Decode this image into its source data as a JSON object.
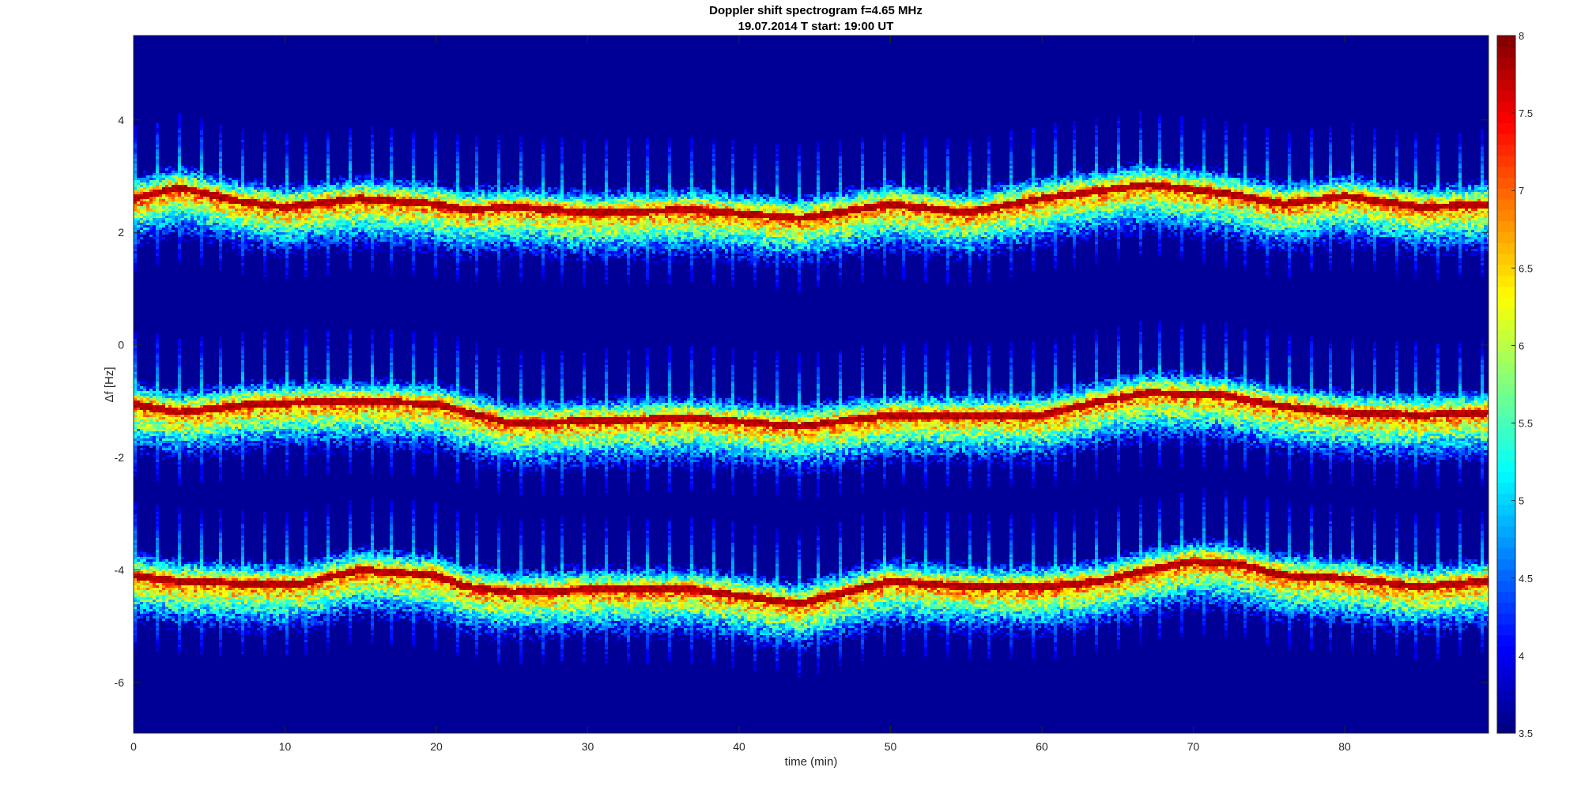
{
  "chart_data": {
    "type": "heatmap",
    "title": "Doppler shift spectrogram f=4.65 MHz",
    "subtitle": "19.07.2014   T start: 19:00 UT",
    "xlabel": "time (min)",
    "ylabel": "Δf [Hz]",
    "xlim": [
      0,
      89.5
    ],
    "ylim": [
      -6.9,
      5.5
    ],
    "x_ticks": [
      "0",
      "10",
      "20",
      "30",
      "40",
      "50",
      "60",
      "70",
      "80"
    ],
    "y_ticks": [
      "-6",
      "-4",
      "-2",
      "0",
      "2",
      "4"
    ],
    "colormap": "jet",
    "colorbar": {
      "range": [
        3.5,
        8
      ],
      "ticks": [
        "3.5",
        "4",
        "4.5",
        "5",
        "5.5",
        "6",
        "6.5",
        "7",
        "7.5",
        "8"
      ]
    },
    "background_level": 3.6,
    "grid": false,
    "bands": [
      {
        "time": [
          0,
          3,
          7,
          10,
          15,
          20,
          22,
          25,
          30,
          37,
          44,
          50,
          55,
          60,
          64,
          67,
          72,
          76,
          80,
          85,
          89.5
        ],
        "freq": [
          2.6,
          2.8,
          2.55,
          2.45,
          2.6,
          2.5,
          2.4,
          2.45,
          2.35,
          2.4,
          2.25,
          2.5,
          2.35,
          2.6,
          2.75,
          2.85,
          2.7,
          2.5,
          2.65,
          2.45,
          2.5
        ]
      },
      {
        "time": [
          0,
          3,
          8,
          15,
          20,
          22,
          25,
          30,
          37,
          44,
          50,
          55,
          60,
          64,
          67,
          72,
          76,
          80,
          85,
          89.5
        ],
        "freq": [
          -1.05,
          -1.2,
          -1.05,
          -1.0,
          -1.05,
          -1.2,
          -1.4,
          -1.35,
          -1.3,
          -1.45,
          -1.25,
          -1.25,
          -1.25,
          -1.0,
          -0.85,
          -0.9,
          -1.1,
          -1.2,
          -1.25,
          -1.2
        ]
      },
      {
        "time": [
          0,
          3,
          8,
          11,
          15,
          20,
          22,
          25,
          30,
          37,
          44,
          50,
          55,
          60,
          64,
          67,
          70,
          73,
          76,
          80,
          85,
          89.5
        ],
        "freq": [
          -4.1,
          -4.2,
          -4.25,
          -4.25,
          -4.0,
          -4.1,
          -4.3,
          -4.4,
          -4.35,
          -4.35,
          -4.6,
          -4.2,
          -4.3,
          -4.3,
          -4.2,
          -4.0,
          -3.85,
          -3.9,
          -4.1,
          -4.15,
          -4.3,
          -4.2
        ]
      }
    ]
  }
}
